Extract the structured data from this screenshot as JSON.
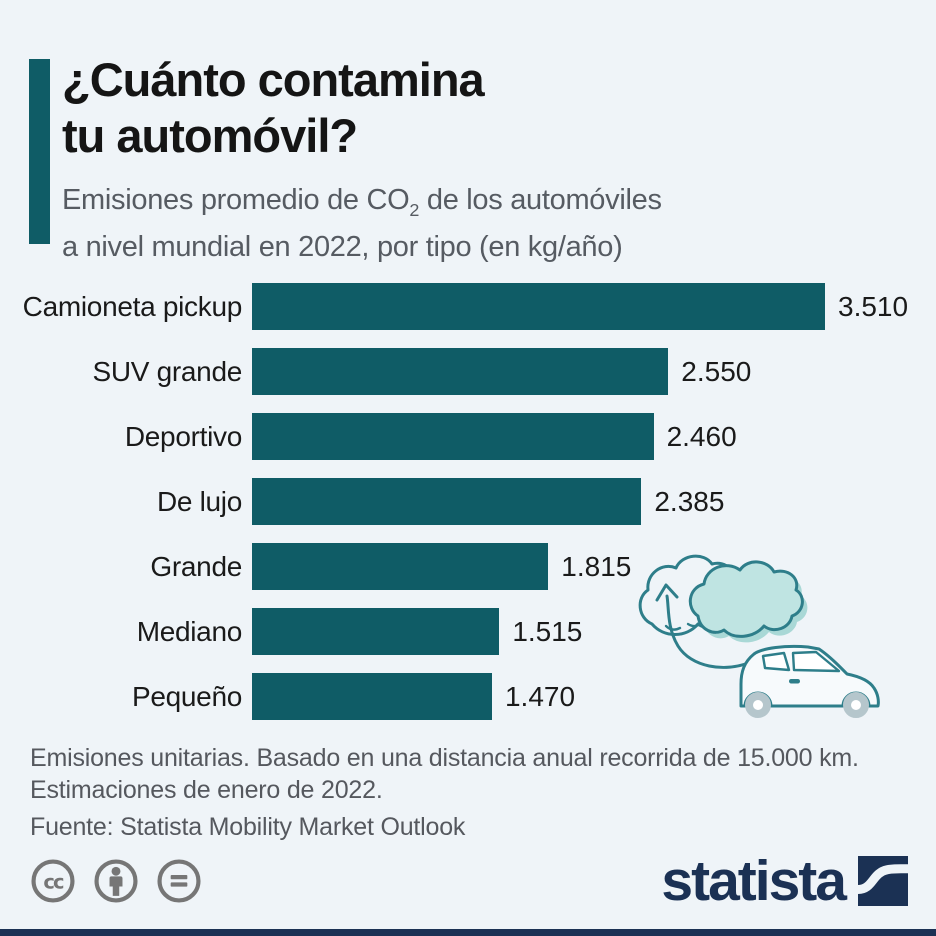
{
  "page": {
    "background": "#eff4f8"
  },
  "header": {
    "accent_color": "#0f5c66",
    "title_line1": "¿Cuánto contamina",
    "title_line2": "tu automóvil?",
    "subtitle_part1": "Emisiones promedio de CO",
    "subtitle_subscript": "2",
    "subtitle_part2": " de los automóviles",
    "subtitle_line2": "a nivel mundial en 2022, por tipo (en kg/año)"
  },
  "chart_data": {
    "type": "bar",
    "orientation": "horizontal",
    "title": "Emisiones promedio de CO2 de los automóviles a nivel mundial en 2022, por tipo (en kg/año)",
    "categories": [
      "Camioneta pickup",
      "SUV grande",
      "Deportivo",
      "De lujo",
      "Grande",
      "Mediano",
      "Pequeño"
    ],
    "values": [
      3510,
      2550,
      2460,
      2385,
      1815,
      1515,
      1470
    ],
    "value_labels": [
      "3.510",
      "2.550",
      "2.460",
      "2.385",
      "1.815",
      "1.515",
      "1.470"
    ],
    "unit": "kg/año",
    "xlim": [
      0,
      3510
    ],
    "bar_color": "#0f5c66",
    "grid": false,
    "legend": false
  },
  "footnotes": {
    "note_line1": "Emisiones unitarias. Basado en una distancia anual recorrida de 15.000 km.",
    "note_line2": "Estimaciones de enero de 2022.",
    "source": "Fuente: Statista Mobility Market Outlook"
  },
  "footer": {
    "license_icons": [
      "cc",
      "by",
      "nd"
    ],
    "brand_wordmark": "statista",
    "brand_color": "#1b3154",
    "license_color": "#767676"
  },
  "illustration": {
    "name": "car-co2-emissions-clouds",
    "stroke_color": "#2e7e8a",
    "cloud_fill": "#bfe4e2",
    "cloud_shadow": "#a9d8d6",
    "wheel_color": "#b5c6cc"
  }
}
